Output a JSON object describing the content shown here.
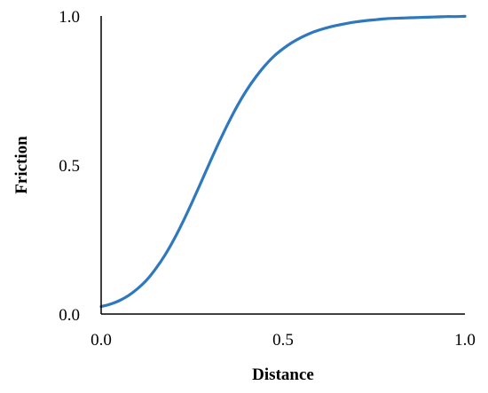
{
  "chart_data": {
    "type": "line",
    "title": "",
    "xlabel": "Distance",
    "ylabel": "Friction",
    "xlim": [
      0,
      1
    ],
    "ylim": [
      0,
      1
    ],
    "x_ticks": [
      0,
      0.5,
      1
    ],
    "y_ticks": [
      0,
      0.5,
      1
    ],
    "x_tick_labels": [
      "0.0",
      "0.5",
      "1.0"
    ],
    "y_tick_labels": [
      "0.0",
      "0.5",
      "1.0"
    ],
    "grid": false,
    "legend": "none",
    "series": [
      {
        "color": "#2e78bd",
        "x": [
          0,
          0.025,
          0.05,
          0.075,
          0.1,
          0.125,
          0.15,
          0.175,
          0.2,
          0.225,
          0.25,
          0.275,
          0.3,
          0.325,
          0.35,
          0.375,
          0.4,
          0.425,
          0.45,
          0.475,
          0.5,
          0.525,
          0.55,
          0.575,
          0.6,
          0.625,
          0.65,
          0.675,
          0.7,
          0.725,
          0.75,
          0.775,
          0.8,
          0.825,
          0.85,
          0.875,
          0.9,
          0.925,
          0.95,
          0.975,
          1.0
        ],
        "y": [
          0.025,
          0.033,
          0.045,
          0.062,
          0.085,
          0.114,
          0.152,
          0.197,
          0.25,
          0.31,
          0.375,
          0.443,
          0.512,
          0.579,
          0.642,
          0.7,
          0.751,
          0.795,
          0.833,
          0.865,
          0.89,
          0.911,
          0.928,
          0.942,
          0.953,
          0.962,
          0.969,
          0.975,
          0.98,
          0.984,
          0.987,
          0.99,
          0.992,
          0.993,
          0.994,
          0.995,
          0.996,
          0.997,
          0.998,
          0.998,
          0.999
        ]
      }
    ]
  }
}
